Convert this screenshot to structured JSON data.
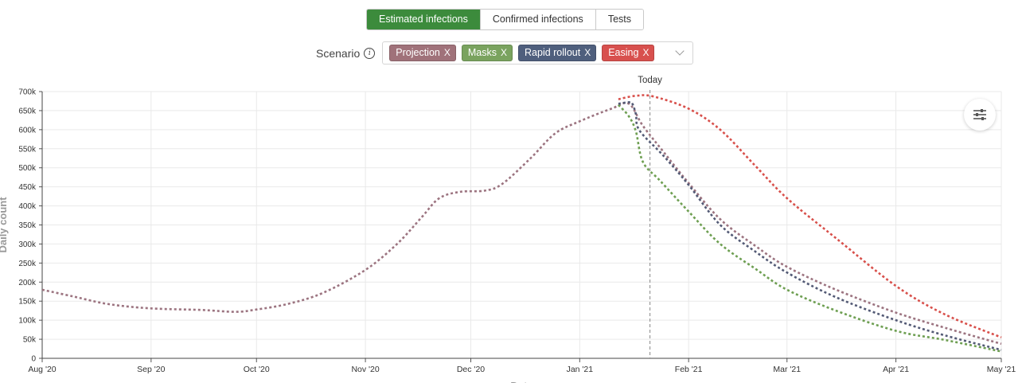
{
  "tabs": [
    "Estimated infections",
    "Confirmed infections",
    "Tests"
  ],
  "active_tab": 0,
  "scenario": {
    "label": "Scenario",
    "chips": [
      {
        "label": "Projection",
        "color": "#a0727a"
      },
      {
        "label": "Masks",
        "color": "#7aa35f"
      },
      {
        "label": "Rapid rollout",
        "color": "#4f5f7d"
      },
      {
        "label": "Easing",
        "color": "#d8504e"
      }
    ],
    "remove_glyph": "X"
  },
  "chart_data": {
    "type": "line",
    "ylabel": "Daily count",
    "xlabel": "Date",
    "today_label": "Today",
    "today": "2021-01-21",
    "y_ticks": [
      "0",
      "50k",
      "100k",
      "150k",
      "200k",
      "250k",
      "300k",
      "350k",
      "400k",
      "450k",
      "500k",
      "550k",
      "600k",
      "650k",
      "700k"
    ],
    "ylim": [
      0,
      700000
    ],
    "x_ticks": [
      {
        "date": "2020-08-01",
        "label": "Aug '20"
      },
      {
        "date": "2020-09-01",
        "label": "Sep '20"
      },
      {
        "date": "2020-10-01",
        "label": "Oct '20"
      },
      {
        "date": "2020-11-01",
        "label": "Nov '20"
      },
      {
        "date": "2020-12-01",
        "label": "Dec '20"
      },
      {
        "date": "2021-01-01",
        "label": "Jan '21"
      },
      {
        "date": "2021-02-01",
        "label": "Feb '21"
      },
      {
        "date": "2021-03-01",
        "label": "Mar '21"
      },
      {
        "date": "2021-04-01",
        "label": "Apr '21"
      },
      {
        "date": "2021-05-01",
        "label": "May '21"
      }
    ],
    "xlim": [
      "2020-08-01",
      "2021-05-01"
    ],
    "grid": true,
    "series": [
      {
        "name": "Projection",
        "color": "#9c7480",
        "points": [
          [
            "2020-08-01",
            180000
          ],
          [
            "2020-08-10",
            162000
          ],
          [
            "2020-08-20",
            142000
          ],
          [
            "2020-09-01",
            131000
          ],
          [
            "2020-09-15",
            127000
          ],
          [
            "2020-09-25",
            122000
          ],
          [
            "2020-10-01",
            128000
          ],
          [
            "2020-10-10",
            143000
          ],
          [
            "2020-10-20",
            172000
          ],
          [
            "2020-11-01",
            232000
          ],
          [
            "2020-11-10",
            300000
          ],
          [
            "2020-11-17",
            370000
          ],
          [
            "2020-11-22",
            420000
          ],
          [
            "2020-11-28",
            437000
          ],
          [
            "2020-12-05",
            440000
          ],
          [
            "2020-12-10",
            458000
          ],
          [
            "2020-12-18",
            525000
          ],
          [
            "2020-12-25",
            590000
          ],
          [
            "2021-01-01",
            622000
          ],
          [
            "2021-01-10",
            655000
          ],
          [
            "2021-01-15",
            668000
          ],
          [
            "2021-01-19",
            610000
          ],
          [
            "2021-01-25",
            540000
          ],
          [
            "2021-02-01",
            460000
          ],
          [
            "2021-02-10",
            365000
          ],
          [
            "2021-02-20",
            295000
          ],
          [
            "2021-03-01",
            240000
          ],
          [
            "2021-03-15",
            180000
          ],
          [
            "2021-04-01",
            120000
          ],
          [
            "2021-04-15",
            80000
          ],
          [
            "2021-05-01",
            38000
          ]
        ]
      },
      {
        "name": "Masks",
        "color": "#6e9f52",
        "points": [
          [
            "2021-01-12",
            665000
          ],
          [
            "2021-01-15",
            635000
          ],
          [
            "2021-01-17",
            595000
          ],
          [
            "2021-01-19",
            515000
          ],
          [
            "2021-01-24",
            465000
          ],
          [
            "2021-02-01",
            385000
          ],
          [
            "2021-02-10",
            300000
          ],
          [
            "2021-02-20",
            235000
          ],
          [
            "2021-03-01",
            180000
          ],
          [
            "2021-03-15",
            125000
          ],
          [
            "2021-04-01",
            72000
          ],
          [
            "2021-04-15",
            48000
          ],
          [
            "2021-05-01",
            18000
          ]
        ]
      },
      {
        "name": "Rapid rollout",
        "color": "#535a75",
        "points": [
          [
            "2021-01-12",
            668000
          ],
          [
            "2021-01-15",
            672000
          ],
          [
            "2021-01-16",
            668000
          ],
          [
            "2021-01-17",
            640000
          ],
          [
            "2021-01-18",
            598000
          ],
          [
            "2021-01-25",
            530000
          ],
          [
            "2021-02-01",
            455000
          ],
          [
            "2021-02-10",
            350000
          ],
          [
            "2021-02-20",
            280000
          ],
          [
            "2021-03-01",
            225000
          ],
          [
            "2021-03-15",
            160000
          ],
          [
            "2021-04-01",
            100000
          ],
          [
            "2021-04-15",
            60000
          ],
          [
            "2021-05-01",
            22000
          ]
        ]
      },
      {
        "name": "Easing",
        "color": "#d8504b",
        "points": [
          [
            "2021-01-12",
            680000
          ],
          [
            "2021-01-17",
            689000
          ],
          [
            "2021-01-22",
            687000
          ],
          [
            "2021-02-01",
            655000
          ],
          [
            "2021-02-10",
            600000
          ],
          [
            "2021-02-20",
            505000
          ],
          [
            "2021-03-01",
            420000
          ],
          [
            "2021-03-15",
            315000
          ],
          [
            "2021-04-01",
            190000
          ],
          [
            "2021-04-15",
            115000
          ],
          [
            "2021-05-01",
            55000
          ]
        ]
      }
    ]
  }
}
